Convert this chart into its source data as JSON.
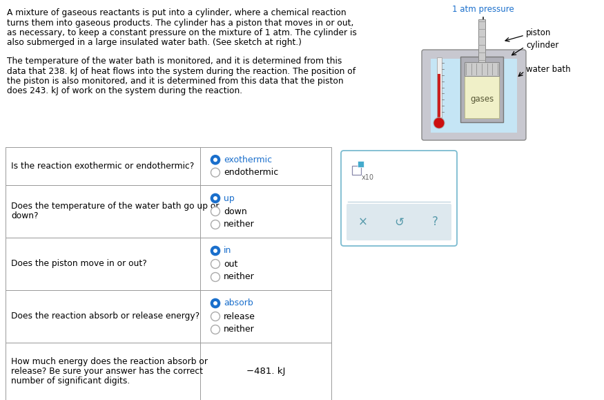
{
  "bg_color": "#ffffff",
  "text_color": "#000000",
  "blue_text": "#3366aa",
  "paragraph1_lines": [
    "A mixture of gaseous reactants is put into a cylinder, where a chemical reaction",
    "turns them into gaseous products. The cylinder has a piston that moves in or out,",
    "as necessary, to keep a constant pressure on the mixture of 1 atm. The cylinder is",
    "also submerged in a large insulated water bath. (See sketch at right.)"
  ],
  "paragraph2_lines": [
    "The temperature of the water bath is monitored, and it is determined from this",
    "data that 238. kJ of heat flows into the system during the reaction. The position of",
    "the piston is also monitored, and it is determined from this data that the piston",
    "does 243. kJ of work on the system during the reaction."
  ],
  "table_rows": [
    {
      "question": "Is the reaction exothermic or endothermic?",
      "options": [
        "exothermic",
        "endothermic"
      ],
      "selected": 0
    },
    {
      "question": "Does the temperature of the water bath go up or\ndown?",
      "options": [
        "up",
        "down",
        "neither"
      ],
      "selected": 0
    },
    {
      "question": "Does the piston move in or out?",
      "options": [
        "in",
        "out",
        "neither"
      ],
      "selected": 0
    },
    {
      "question": "Does the reaction absorb or release energy?",
      "options": [
        "absorb",
        "release",
        "neither"
      ],
      "selected": 0
    },
    {
      "question": "How much energy does the reaction absorb or\nrelease? Be sure your answer has the correct\nnumber of significant digits.",
      "options": [],
      "answer": "−481. kJ"
    }
  ],
  "diagram_label_atm": "1 atm pressure",
  "diagram_label_piston": "piston",
  "diagram_label_cylinder": "cylinder",
  "diagram_label_water": "water bath",
  "diagram_label_gases": "gases",
  "selected_color": "#1a6fcc",
  "unselected_border": "#aaaaaa",
  "table_border": "#999999",
  "water_color": "#c5e5f5",
  "bath_wall_color": "#b8b8c0",
  "bath_fill_color": "#c8c8d0",
  "cylinder_wall_color": "#b0b0b8",
  "gas_color": "#f0f0c8",
  "therm_tube_color": "#e8e8e8",
  "therm_fill_color": "#cc2020",
  "therm_bulb_color": "#cc1010",
  "panel_border": "#7bbbd0",
  "panel_bg": "#ffffff",
  "panel_bottom_bg": "#dde8ee",
  "btn_color": "#5599aa",
  "checkbox_border": "#8888aa",
  "checkbox_fill": "#44aacc"
}
